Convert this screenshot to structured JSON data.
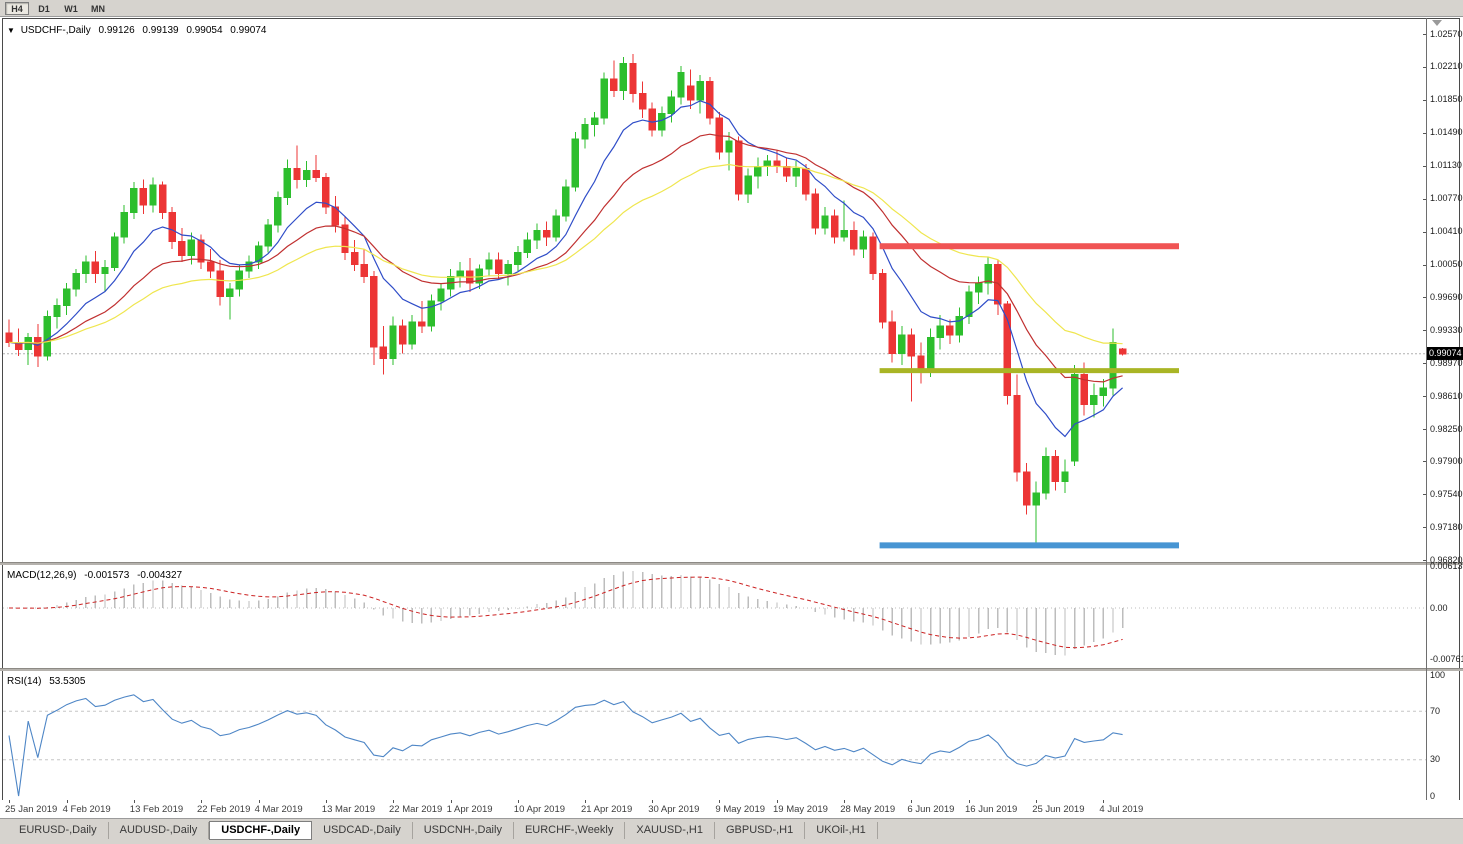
{
  "toolbar": {
    "timeframes": [
      {
        "label": "H4",
        "active": true
      },
      {
        "label": "D1",
        "active": false
      },
      {
        "label": "W1",
        "active": false
      },
      {
        "label": "MN",
        "active": false
      }
    ]
  },
  "chart": {
    "title": {
      "collapse_icon": "▼",
      "symbol": "USDCHF-,Daily",
      "open": "0.99126",
      "high": "0.99139",
      "low": "0.99054",
      "close": "0.99074"
    },
    "current_price_tag": "0.99074",
    "price_axis_labels": [
      "1.02570",
      "1.02210",
      "1.01850",
      "1.01490",
      "1.01130",
      "1.00770",
      "1.00410",
      "1.00050",
      "0.99690",
      "0.99330",
      "0.98970",
      "0.98610",
      "0.98250",
      "0.97900",
      "0.97540",
      "0.97180",
      "0.96820"
    ],
    "date_axis_labels": [
      {
        "text": "25 Jan 2019",
        "index": 0
      },
      {
        "text": "4 Feb 2019",
        "index": 6
      },
      {
        "text": "13 Feb 2019",
        "index": 13
      },
      {
        "text": "22 Feb 2019",
        "index": 20
      },
      {
        "text": "4 Mar 2019",
        "index": 26
      },
      {
        "text": "13 Mar 2019",
        "index": 33
      },
      {
        "text": "22 Mar 2019",
        "index": 40
      },
      {
        "text": "1 Apr 2019",
        "index": 46
      },
      {
        "text": "10 Apr 2019",
        "index": 53
      },
      {
        "text": "21 Apr 2019",
        "index": 60
      },
      {
        "text": "30 Apr 2019",
        "index": 67
      },
      {
        "text": "9 May 2019",
        "index": 74
      },
      {
        "text": "19 May 2019",
        "index": 80
      },
      {
        "text": "28 May 2019",
        "index": 87
      },
      {
        "text": "6 Jun 2019",
        "index": 94
      },
      {
        "text": "16 Jun 2019",
        "index": 100
      },
      {
        "text": "25 Jun 2019",
        "index": 107
      },
      {
        "text": "4 Jul 2019",
        "index": 114
      }
    ]
  },
  "indicators": {
    "macd": {
      "label": "MACD(12,26,9)",
      "value_main": "-0.001573",
      "value_signal": "-0.004327",
      "axis_labels": [
        "0.00613",
        "0.00",
        "-0.00761"
      ],
      "fast": 12,
      "slow": 26,
      "signal": 9
    },
    "rsi": {
      "label": "RSI(14)",
      "value": "53.5305",
      "axis_labels": [
        "100",
        "70",
        "30",
        "0"
      ],
      "period": 14,
      "levels": [
        70,
        30
      ]
    }
  },
  "tabs": [
    {
      "label": "EURUSD-,Daily",
      "active": false
    },
    {
      "label": "AUDUSD-,Daily",
      "active": false
    },
    {
      "label": "USDCHF-,Daily",
      "active": true
    },
    {
      "label": "USDCAD-,Daily",
      "active": false
    },
    {
      "label": "USDCNH-,Daily",
      "active": false
    },
    {
      "label": "EURCHF-,Weekly",
      "active": false
    },
    {
      "label": "XAUUSD-,H1",
      "active": false
    },
    {
      "label": "GBPUSD-,H1",
      "active": false
    },
    {
      "label": "UKOil-,H1",
      "active": false
    }
  ],
  "colors": {
    "bull": "#2dbe2d",
    "bear": "#ec3535",
    "ma_fast": "#2f4dc8",
    "ma_mid": "#c03030",
    "ma_slow": "#efe64f",
    "hline_red": "#f05454",
    "hline_olive": "#a9b525",
    "hline_blue": "#4795d3",
    "macd_hist": "#bdbdbd",
    "macd_signal": "#cc2222",
    "rsi": "#4e86c6",
    "price_line": "#b0b0b0",
    "tag_bg": "#000000"
  },
  "chart_data": {
    "type": "candlestick",
    "symbol": "USDCHF",
    "timeframe": "Daily",
    "price_range": {
      "top": 1.0257,
      "bottom": 0.9682
    },
    "last_close": 0.99074,
    "moving_averages": [
      {
        "name": "fast",
        "method": "ema",
        "period": 9,
        "color_key": "ma_fast"
      },
      {
        "name": "mid",
        "method": "ema",
        "period": 20,
        "color_key": "ma_mid"
      },
      {
        "name": "slow",
        "method": "ema",
        "period": 34,
        "color_key": "ma_slow"
      }
    ],
    "hlines": [
      {
        "name": "resistance-upper-red",
        "price": 1.0025,
        "color_key": "hline_red",
        "thickness": 6,
        "from_index": 91
      },
      {
        "name": "support-mid-olive",
        "price": 0.9889,
        "color_key": "hline_olive",
        "thickness": 5,
        "from_index": 91
      },
      {
        "name": "support-lower-blue",
        "price": 0.9698,
        "color_key": "hline_blue",
        "thickness": 6,
        "from_index": 91
      }
    ],
    "candles": [
      [
        0.993,
        0.9945,
        0.9915,
        0.992
      ],
      [
        0.992,
        0.9935,
        0.9905,
        0.9912
      ],
      [
        0.9912,
        0.993,
        0.9895,
        0.9925
      ],
      [
        0.9925,
        0.994,
        0.9893,
        0.9905
      ],
      [
        0.9905,
        0.9955,
        0.99,
        0.9948
      ],
      [
        0.9948,
        0.9968,
        0.9935,
        0.996
      ],
      [
        0.996,
        0.9985,
        0.995,
        0.9978
      ],
      [
        0.9978,
        1.0,
        0.997,
        0.9995
      ],
      [
        0.9995,
        1.0015,
        0.9985,
        1.0008
      ],
      [
        1.0008,
        1.002,
        0.9985,
        0.9995
      ],
      [
        0.9995,
        1.001,
        0.9975,
        1.0002
      ],
      [
        1.0002,
        1.004,
        0.9998,
        1.0035
      ],
      [
        1.0035,
        1.007,
        1.0028,
        1.0062
      ],
      [
        1.0062,
        1.0095,
        1.0055,
        1.0088
      ],
      [
        1.0088,
        1.0098,
        1.006,
        1.007
      ],
      [
        1.007,
        1.01,
        1.0062,
        1.0092
      ],
      [
        1.0092,
        1.0096,
        1.0055,
        1.0062
      ],
      [
        1.0062,
        1.0068,
        1.0022,
        1.003
      ],
      [
        1.003,
        1.0045,
        1.0008,
        1.0015
      ],
      [
        1.0015,
        1.004,
        1.0005,
        1.0032
      ],
      [
        1.0032,
        1.0038,
        1.0,
        1.0008
      ],
      [
        1.0008,
        1.0022,
        0.999,
        0.9998
      ],
      [
        0.9998,
        1.001,
        0.996,
        0.997
      ],
      [
        0.997,
        0.9985,
        0.9945,
        0.9978
      ],
      [
        0.9978,
        1.0005,
        0.997,
        0.9998
      ],
      [
        0.9998,
        1.0015,
        0.999,
        1.0008
      ],
      [
        1.0008,
        1.003,
        1.0,
        1.0025
      ],
      [
        1.0025,
        1.0055,
        1.0018,
        1.0048
      ],
      [
        1.0048,
        1.0085,
        1.004,
        1.0078
      ],
      [
        1.0078,
        1.012,
        1.007,
        1.011
      ],
      [
        1.011,
        1.0135,
        1.0088,
        1.0098
      ],
      [
        1.0098,
        1.0118,
        1.009,
        1.0108
      ],
      [
        1.0108,
        1.0125,
        1.0095,
        1.01
      ],
      [
        1.01,
        1.0105,
        1.006,
        1.0068
      ],
      [
        1.0068,
        1.008,
        1.004,
        1.0048
      ],
      [
        1.0048,
        1.0058,
        1.001,
        1.0018
      ],
      [
        1.0018,
        1.0032,
        0.9998,
        1.0005
      ],
      [
        1.0005,
        1.0022,
        0.9985,
        0.9992
      ],
      [
        0.9992,
        0.9998,
        0.9895,
        0.9915
      ],
      [
        0.9915,
        0.9938,
        0.9885,
        0.9902
      ],
      [
        0.9902,
        0.9948,
        0.9895,
        0.9938
      ],
      [
        0.9938,
        0.9945,
        0.9908,
        0.9918
      ],
      [
        0.9918,
        0.995,
        0.9912,
        0.9942
      ],
      [
        0.9942,
        0.9965,
        0.993,
        0.9938
      ],
      [
        0.9938,
        0.9972,
        0.9932,
        0.9965
      ],
      [
        0.9965,
        0.9985,
        0.9955,
        0.9978
      ],
      [
        0.9978,
        1.0,
        0.997,
        0.9992
      ],
      [
        0.9992,
        1.0008,
        0.998,
        0.9998
      ],
      [
        0.9998,
        1.0012,
        0.9975,
        0.9985
      ],
      [
        0.9985,
        1.0005,
        0.9978,
        1.0
      ],
      [
        1.0,
        1.0018,
        0.9992,
        1.001
      ],
      [
        1.001,
        1.0018,
        0.9988,
        0.9995
      ],
      [
        0.9995,
        1.001,
        0.9982,
        1.0005
      ],
      [
        1.0005,
        1.0025,
        0.9998,
        1.0018
      ],
      [
        1.0018,
        1.004,
        1.0012,
        1.0032
      ],
      [
        1.0032,
        1.005,
        1.0022,
        1.0042
      ],
      [
        1.0042,
        1.0052,
        1.0025,
        1.0035
      ],
      [
        1.0035,
        1.0065,
        1.003,
        1.0058
      ],
      [
        1.0058,
        1.0098,
        1.0052,
        1.009
      ],
      [
        1.009,
        1.015,
        1.0085,
        1.0142
      ],
      [
        1.0142,
        1.0165,
        1.0132,
        1.0158
      ],
      [
        1.0158,
        1.0172,
        1.0145,
        1.0165
      ],
      [
        1.0165,
        1.0215,
        1.0158,
        1.0208
      ],
      [
        1.0208,
        1.0228,
        1.0188,
        1.0195
      ],
      [
        1.0195,
        1.0232,
        1.0185,
        1.0225
      ],
      [
        1.0225,
        1.0235,
        1.0182,
        1.0192
      ],
      [
        1.0192,
        1.0205,
        1.0165,
        1.0175
      ],
      [
        1.0175,
        1.0182,
        1.0145,
        1.0152
      ],
      [
        1.0152,
        1.0178,
        1.0145,
        1.017
      ],
      [
        1.017,
        1.0195,
        1.016,
        1.0188
      ],
      [
        1.0188,
        1.0222,
        1.018,
        1.0215
      ],
      [
        1.02,
        1.0218,
        1.0175,
        1.0185
      ],
      [
        1.0185,
        1.0212,
        1.017,
        1.0205
      ],
      [
        1.0205,
        1.021,
        1.0158,
        1.0165
      ],
      [
        1.0165,
        1.0172,
        1.012,
        1.0128
      ],
      [
        1.0128,
        1.015,
        1.0108,
        1.014
      ],
      [
        1.014,
        1.0145,
        1.0075,
        1.0082
      ],
      [
        1.0082,
        1.011,
        1.0072,
        1.0102
      ],
      [
        1.0102,
        1.0122,
        1.0088,
        1.0112
      ],
      [
        1.0112,
        1.0125,
        1.0102,
        1.0118
      ],
      [
        1.0118,
        1.013,
        1.0105,
        1.0112
      ],
      [
        1.0112,
        1.0122,
        1.0095,
        1.0102
      ],
      [
        1.0102,
        1.0118,
        1.009,
        1.011
      ],
      [
        1.011,
        1.0115,
        1.0075,
        1.0082
      ],
      [
        1.0082,
        1.0088,
        1.0038,
        1.0045
      ],
      [
        1.0045,
        1.0068,
        1.0038,
        1.0058
      ],
      [
        1.0058,
        1.0065,
        1.0028,
        1.0035
      ],
      [
        1.0035,
        1.0075,
        1.003,
        1.0042
      ],
      [
        1.0042,
        1.0052,
        1.0015,
        1.0022
      ],
      [
        1.0022,
        1.0042,
        1.0012,
        1.0035
      ],
      [
        1.0035,
        1.004,
        0.9988,
        0.9995
      ],
      [
        0.9995,
        1.0,
        0.9935,
        0.9942
      ],
      [
        0.9942,
        0.9955,
        0.9898,
        0.9908
      ],
      [
        0.9908,
        0.9938,
        0.9895,
        0.9928
      ],
      [
        0.9928,
        0.9935,
        0.9855,
        0.9905
      ],
      [
        0.9905,
        0.992,
        0.9875,
        0.9888
      ],
      [
        0.9888,
        0.9935,
        0.9882,
        0.9925
      ],
      [
        0.9925,
        0.995,
        0.9912,
        0.9938
      ],
      [
        0.9938,
        0.9945,
        0.9918,
        0.9928
      ],
      [
        0.9928,
        0.9958,
        0.992,
        0.9948
      ],
      [
        0.9948,
        0.9982,
        0.994,
        0.9975
      ],
      [
        0.9975,
        0.9992,
        0.9962,
        0.9985
      ],
      [
        0.9985,
        1.0014,
        0.9972,
        1.0005
      ],
      [
        1.0005,
        1.001,
        0.995,
        0.9962
      ],
      [
        0.9962,
        0.9965,
        0.9852,
        0.9862
      ],
      [
        0.9862,
        0.9885,
        0.9768,
        0.9778
      ],
      [
        0.9778,
        0.9788,
        0.9732,
        0.9742
      ],
      [
        0.9742,
        0.9768,
        0.9695,
        0.9755
      ],
      [
        0.9755,
        0.9805,
        0.9748,
        0.9795
      ],
      [
        0.9795,
        0.9802,
        0.9758,
        0.9768
      ],
      [
        0.9768,
        0.9792,
        0.9755,
        0.9778
      ],
      [
        0.979,
        0.9895,
        0.9785,
        0.9885
      ],
      [
        0.9885,
        0.9898,
        0.984,
        0.9852
      ],
      [
        0.9852,
        0.9875,
        0.9838,
        0.9862
      ],
      [
        0.9862,
        0.988,
        0.985,
        0.987
      ],
      [
        0.987,
        0.9935,
        0.9862,
        0.992
      ],
      [
        0.99126,
        0.99139,
        0.99054,
        0.99074
      ]
    ]
  }
}
